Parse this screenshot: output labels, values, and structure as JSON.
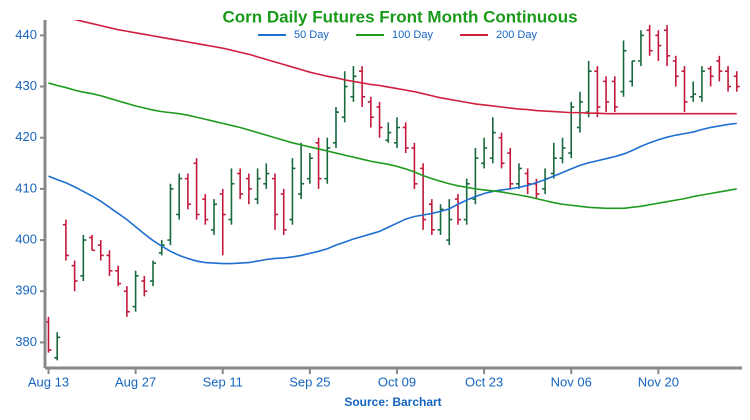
{
  "chart_data": {
    "type": "ohlc",
    "title": "Corn Daily Futures Front Month Continuous",
    "source": "Source: Barchart",
    "categories": [
      "Aug 13",
      null,
      null,
      null,
      null,
      null,
      null,
      null,
      null,
      null,
      "Aug 27",
      null,
      null,
      null,
      null,
      null,
      null,
      null,
      null,
      null,
      "Sep 11",
      null,
      null,
      null,
      null,
      null,
      null,
      null,
      null,
      null,
      "Sep 25",
      null,
      null,
      null,
      null,
      null,
      null,
      null,
      null,
      null,
      "Oct 09",
      null,
      null,
      null,
      null,
      null,
      null,
      null,
      null,
      null,
      "Oct 23",
      null,
      null,
      null,
      null,
      null,
      null,
      null,
      null,
      null,
      "Nov 06",
      null,
      null,
      null,
      null,
      null,
      null,
      null,
      null,
      null,
      "Nov 20",
      null,
      null,
      null,
      null,
      null,
      null,
      null,
      null,
      null
    ],
    "open": [
      384,
      377,
      403,
      395,
      393,
      400.5,
      399,
      397,
      394,
      390,
      387,
      392,
      392,
      397.5,
      400,
      405,
      412,
      415,
      408,
      402,
      409,
      404,
      413,
      412,
      408,
      411,
      412,
      409,
      404,
      409,
      412,
      419,
      412,
      419,
      424,
      428,
      433,
      427,
      426,
      419.5,
      419,
      422,
      418,
      414,
      407,
      402,
      400,
      408,
      404,
      408,
      415,
      416,
      420,
      417,
      411,
      413,
      411,
      410,
      413,
      416,
      417,
      422,
      425,
      433,
      431,
      431,
      429,
      431,
      435,
      441,
      440,
      441,
      435,
      433,
      428,
      428,
      433.5,
      435,
      433,
      432
    ],
    "high": [
      385,
      382,
      404,
      396,
      401,
      401,
      400,
      398,
      395,
      391,
      394,
      393,
      396,
      400,
      411,
      413,
      413,
      416,
      409,
      408,
      410,
      414,
      414,
      413,
      414,
      415,
      413,
      410,
      416,
      419,
      417,
      420,
      420,
      426,
      433,
      434,
      434,
      428,
      427,
      423,
      424,
      423,
      419,
      415,
      408,
      407,
      408,
      409,
      412,
      418,
      420,
      424,
      421,
      418,
      415,
      414,
      412,
      414,
      419,
      420,
      427,
      429,
      435,
      434,
      432,
      432,
      439,
      435,
      441,
      442,
      441,
      442,
      436,
      434,
      431,
      434,
      434,
      436,
      434,
      433
    ],
    "low": [
      378,
      376.5,
      396,
      390,
      392,
      398,
      396,
      393,
      391,
      385,
      386,
      389,
      391,
      397,
      399,
      404,
      406,
      404,
      403,
      401,
      397,
      403,
      408,
      407,
      407,
      410,
      402,
      401,
      403,
      408,
      411,
      410,
      411,
      418,
      423,
      427,
      426,
      422,
      420,
      419,
      418,
      417,
      410,
      402,
      401,
      401,
      399,
      403,
      403,
      407,
      414,
      415,
      414,
      410,
      410,
      409,
      408,
      409,
      412,
      415,
      416,
      421,
      424,
      424,
      425,
      425,
      428,
      430,
      434,
      436,
      435,
      434,
      430,
      425,
      427,
      427,
      430,
      431,
      429,
      429
    ],
    "close": [
      378.5,
      381,
      397,
      392,
      400,
      398,
      397,
      394,
      391.5,
      386,
      393,
      390,
      395.5,
      399,
      410,
      412,
      407,
      405,
      404,
      407,
      405,
      411,
      409,
      410,
      412,
      413,
      405,
      402,
      414,
      411,
      416,
      412,
      418,
      425,
      430,
      432,
      428,
      424,
      422,
      421,
      422,
      418,
      411,
      404,
      402,
      406,
      404,
      404,
      411,
      416,
      418,
      421,
      415,
      411,
      414,
      411,
      409,
      412,
      416,
      418,
      426,
      427,
      433,
      426,
      427,
      426,
      437,
      435,
      440,
      437,
      438,
      436,
      432,
      427,
      428.5,
      433,
      432,
      433,
      430,
      430
    ],
    "up_color": "#17693f",
    "down_color": "#c2193a",
    "series": [
      {
        "name": "50 Day",
        "color": "#1f6fd1",
        "values": [
          412.5,
          411.8,
          411.2,
          410.4,
          409.5,
          408.6,
          407.6,
          406.4,
          405.2,
          404,
          402.6,
          401.2,
          399.9,
          398.8,
          397.8,
          397,
          396.4,
          395.9,
          395.6,
          395.5,
          395.4,
          395.4,
          395.5,
          395.6,
          395.9,
          396.2,
          396.4,
          396.5,
          396.7,
          397,
          397.4,
          397.8,
          398.3,
          399,
          399.6,
          400.2,
          400.7,
          401.2,
          401.7,
          402.5,
          403.3,
          404.1,
          404.6,
          404.9,
          405.2,
          405.6,
          406.1,
          407,
          407.8,
          408.5,
          409.1,
          409.5,
          409.8,
          410,
          410.3,
          410.7,
          411.2,
          411.8,
          412.5,
          413.2,
          413.9,
          414.6,
          415.1,
          415.5,
          415.9,
          416.3,
          416.8,
          417.5,
          418.3,
          419,
          419.6,
          420.1,
          420.5,
          420.8,
          421.1,
          421.6,
          422,
          422.3,
          422.6,
          422.8
        ]
      },
      {
        "name": "100 Day",
        "color": "#1f9a1f",
        "values": [
          430.7,
          430.2,
          429.8,
          429.3,
          428.9,
          428.6,
          428.2,
          427.7,
          427.2,
          426.7,
          426.2,
          425.8,
          425.4,
          425.1,
          424.9,
          424.7,
          424.4,
          424,
          423.6,
          423.2,
          422.8,
          422.4,
          422,
          421.5,
          421,
          420.5,
          420,
          419.5,
          419,
          418.6,
          418.2,
          417.8,
          417.4,
          417,
          416.6,
          416.2,
          415.8,
          415.4,
          415.1,
          414.8,
          414.4,
          413.9,
          413.3,
          412.6,
          412,
          411.5,
          411,
          410.6,
          410.3,
          410,
          409.8,
          409.6,
          409.4,
          409.1,
          408.8,
          408.5,
          408.1,
          407.7,
          407.3,
          407,
          406.8,
          406.6,
          406.4,
          406.3,
          406.2,
          406.2,
          406.2,
          406.4,
          406.6,
          406.9,
          407.2,
          407.5,
          407.8,
          408.1,
          408.5,
          408.8,
          409.1,
          409.4,
          409.7,
          410
        ]
      },
      {
        "name": "200 Day",
        "color": "#d0203f",
        "values": [
          444.2,
          443.9,
          443.5,
          443.1,
          442.7,
          442.3,
          441.9,
          441.5,
          441.1,
          440.8,
          440.5,
          440.2,
          439.9,
          439.6,
          439.3,
          439,
          438.7,
          438.4,
          438.1,
          437.8,
          437.5,
          437.1,
          436.7,
          436.3,
          435.8,
          435.3,
          434.8,
          434.3,
          433.8,
          433.3,
          432.8,
          432.4,
          432,
          431.7,
          431.3,
          431,
          430.7,
          430.4,
          430.2,
          429.9,
          429.6,
          429.3,
          429,
          428.6,
          428.2,
          427.8,
          427.5,
          427.2,
          426.9,
          426.6,
          426.4,
          426.2,
          426,
          425.8,
          425.6,
          425.5,
          425.3,
          425.2,
          425.1,
          425,
          424.9,
          424.9,
          424.8,
          424.8,
          424.7,
          424.7,
          424.7,
          424.7,
          424.7,
          424.7,
          424.7,
          424.7,
          424.7,
          424.7,
          424.7,
          424.7,
          424.7,
          424.7,
          424.7,
          424.7
        ]
      }
    ],
    "ylim": [
      375,
      443
    ],
    "yticks": [
      380,
      390,
      400,
      410,
      420,
      430,
      440
    ],
    "legend": "top"
  }
}
